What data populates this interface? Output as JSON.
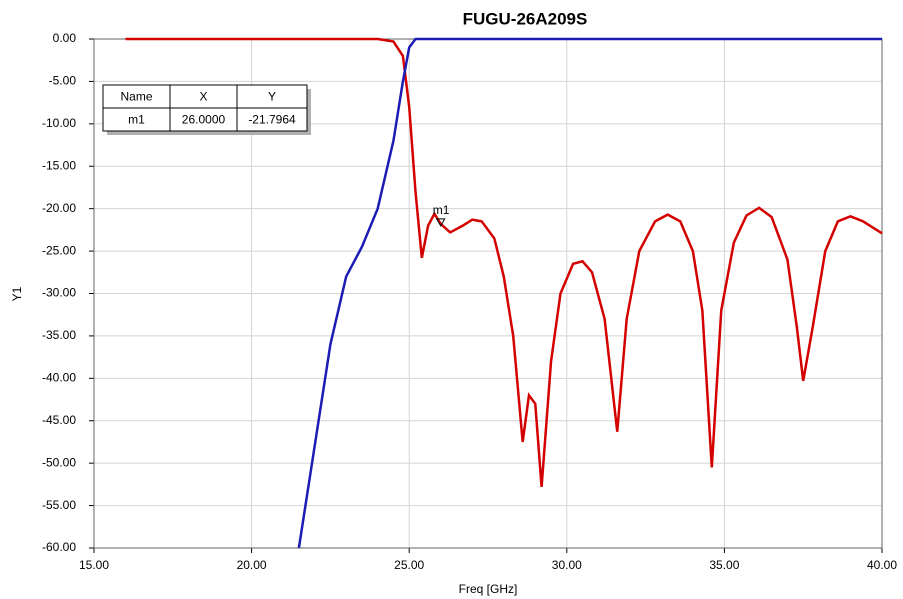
{
  "chart_data": {
    "type": "line",
    "title": "FUGU-26A209S",
    "x_label": "Freq [GHz]",
    "y_label": "Y1",
    "xlim": [
      15,
      40
    ],
    "ylim": [
      -60,
      0
    ],
    "xticks": [
      {
        "value": 15,
        "label": "15.00"
      },
      {
        "value": 20,
        "label": "20.00"
      },
      {
        "value": 25,
        "label": "25.00"
      },
      {
        "value": 30,
        "label": "30.00"
      },
      {
        "value": 35,
        "label": "35.00"
      },
      {
        "value": 40,
        "label": "40.00"
      }
    ],
    "yticks": [
      {
        "value": 0,
        "label": "0.00"
      },
      {
        "value": -5,
        "label": "-5.00"
      },
      {
        "value": -10,
        "label": "-10.00"
      },
      {
        "value": -15,
        "label": "-15.00"
      },
      {
        "value": -20,
        "label": "-20.00"
      },
      {
        "value": -25,
        "label": "-25.00"
      },
      {
        "value": -30,
        "label": "-30.00"
      },
      {
        "value": -35,
        "label": "-35.00"
      },
      {
        "value": -40,
        "label": "-40.00"
      },
      {
        "value": -45,
        "label": "-45.00"
      },
      {
        "value": -50,
        "label": "-50.00"
      },
      {
        "value": -55,
        "label": "-55.00"
      },
      {
        "value": -60,
        "label": "-60.00"
      }
    ],
    "grid": true,
    "series": [
      {
        "color": "#d40000",
        "x": [
          16,
          24,
          24.5,
          24.8,
          25.0,
          25.2,
          25.4,
          25.6,
          25.8,
          26.0,
          26.3,
          26.7,
          27.0,
          27.3,
          27.7,
          28.0,
          28.3,
          28.6,
          28.8,
          29.0,
          29.2,
          29.5,
          29.8,
          30.2,
          30.5,
          30.8,
          31.2,
          31.6,
          31.9,
          32.3,
          32.8,
          33.2,
          33.6,
          34.0,
          34.3,
          34.6,
          34.9,
          35.3,
          35.7,
          36.1,
          36.5,
          37.0,
          37.3,
          37.5,
          37.8,
          38.2,
          38.6,
          39.0,
          39.4,
          40
        ],
        "values": [
          0,
          0,
          -0.3,
          -2,
          -8,
          -18,
          -25.8,
          -22,
          -20.6,
          -21.8,
          -22.8,
          -22,
          -21.3,
          -21.5,
          -23.5,
          -28,
          -35,
          -47.5,
          -42,
          -43,
          -52.8,
          -38,
          -30,
          -26.5,
          -26.2,
          -27.5,
          -33,
          -46.3,
          -33,
          -25,
          -21.5,
          -20.7,
          -21.5,
          -25,
          -32,
          -50.5,
          -32,
          -24,
          -20.8,
          -19.9,
          -21,
          -26,
          -34,
          -40.3,
          -34,
          -25,
          -21.5,
          -20.9,
          -21.5,
          -22.9
        ]
      },
      {
        "color": "#1c1cb4",
        "x": [
          21.5,
          22.0,
          22.5,
          23.0,
          23.5,
          24.0,
          24.5,
          24.8,
          25.0,
          25.2,
          40
        ],
        "values": [
          -60,
          -48,
          -36,
          -28,
          -24.5,
          -20,
          -12,
          -5,
          -1,
          0,
          0
        ]
      }
    ],
    "markers": [
      {
        "name": "m1",
        "x": 26,
        "y": -21.7964,
        "x_label": "26.0000",
        "y_label": "-21.7964"
      }
    ],
    "marker_table": {
      "headers": [
        "Name",
        "X",
        "Y"
      ]
    }
  }
}
